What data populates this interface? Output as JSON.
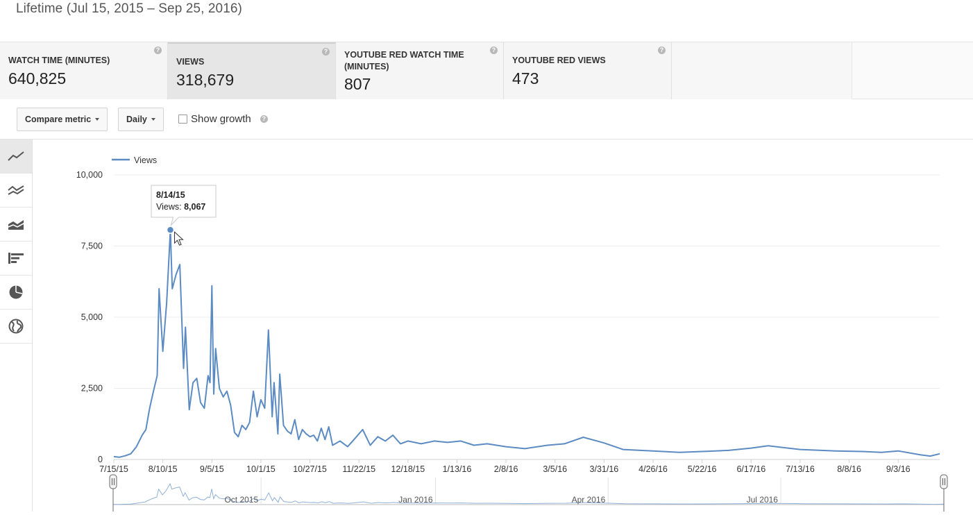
{
  "header": {
    "date_range": "Lifetime (Jul 15, 2015 – Sep 25, 2016)"
  },
  "metrics": [
    {
      "label": "WATCH TIME (MINUTES)",
      "value": "640,825",
      "selected": false
    },
    {
      "label": "VIEWS",
      "value": "318,679",
      "selected": true
    },
    {
      "label": "YOUTUBE RED WATCH TIME (MINUTES)",
      "value": "807",
      "selected": false
    },
    {
      "label": "YOUTUBE RED VIEWS",
      "value": "473",
      "selected": false
    }
  ],
  "help_glyph": "?",
  "toolbar": {
    "compare_label": "Compare metric",
    "interval_label": "Daily",
    "growth_label": "Show growth"
  },
  "sidebar_icons": [
    "line-chart-icon",
    "multi-line-chart-icon",
    "stacked-area-chart-icon",
    "bar-chart-icon",
    "pie-chart-icon",
    "globe-map-icon"
  ],
  "colors": {
    "series": "#5b8bc2",
    "grid": "#ececec",
    "selected_tab": "#e6e6e6"
  },
  "chart_data": {
    "type": "line",
    "title": "",
    "xlabel": "",
    "ylabel": "",
    "ylim": [
      0,
      10000
    ],
    "yticks": [
      0,
      2500,
      5000,
      7500,
      10000
    ],
    "ytick_labels": [
      "0",
      "2,500",
      "5,000",
      "7,500",
      "10,000"
    ],
    "xlim": [
      "2015-07-15",
      "2016-09-25"
    ],
    "xtick_labels": [
      "7/15/15",
      "8/10/15",
      "9/5/15",
      "10/1/15",
      "10/27/15",
      "11/22/15",
      "12/18/15",
      "1/13/16",
      "2/8/16",
      "3/5/16",
      "3/31/16",
      "4/26/16",
      "5/22/16",
      "6/17/16",
      "7/13/16",
      "8/8/16",
      "9/3/16"
    ],
    "xticks": [
      "2015-07-15",
      "2015-08-10",
      "2015-09-05",
      "2015-10-01",
      "2015-10-27",
      "2015-11-22",
      "2015-12-18",
      "2016-01-13",
      "2016-02-08",
      "2016-03-05",
      "2016-03-31",
      "2016-04-26",
      "2016-05-22",
      "2016-06-17",
      "2016-07-13",
      "2016-08-08",
      "2016-09-03"
    ],
    "grid": true,
    "legend": "top-left",
    "series": [
      {
        "name": "Views",
        "points": [
          [
            "2015-07-15",
            100
          ],
          [
            "2015-07-18",
            80
          ],
          [
            "2015-07-21",
            130
          ],
          [
            "2015-07-24",
            200
          ],
          [
            "2015-07-27",
            450
          ],
          [
            "2015-07-30",
            850
          ],
          [
            "2015-08-01",
            1050
          ],
          [
            "2015-08-03",
            1800
          ],
          [
            "2015-08-05",
            2400
          ],
          [
            "2015-08-07",
            2950
          ],
          [
            "2015-08-08",
            6000
          ],
          [
            "2015-08-10",
            3800
          ],
          [
            "2015-08-12",
            5500
          ],
          [
            "2015-08-14",
            8067
          ],
          [
            "2015-08-15",
            6000
          ],
          [
            "2015-08-17",
            6500
          ],
          [
            "2015-08-19",
            6850
          ],
          [
            "2015-08-21",
            3200
          ],
          [
            "2015-08-22",
            4650
          ],
          [
            "2015-08-24",
            1750
          ],
          [
            "2015-08-26",
            2700
          ],
          [
            "2015-08-28",
            2850
          ],
          [
            "2015-08-30",
            2000
          ],
          [
            "2015-09-01",
            1800
          ],
          [
            "2015-09-03",
            2950
          ],
          [
            "2015-09-04",
            2700
          ],
          [
            "2015-09-05",
            6100
          ],
          [
            "2015-09-06",
            2300
          ],
          [
            "2015-09-07",
            3900
          ],
          [
            "2015-09-09",
            2500
          ],
          [
            "2015-09-11",
            2200
          ],
          [
            "2015-09-13",
            2400
          ],
          [
            "2015-09-15",
            1900
          ],
          [
            "2015-09-17",
            950
          ],
          [
            "2015-09-19",
            800
          ],
          [
            "2015-09-21",
            1200
          ],
          [
            "2015-09-23",
            1050
          ],
          [
            "2015-09-25",
            1300
          ],
          [
            "2015-09-27",
            2400
          ],
          [
            "2015-09-29",
            1500
          ],
          [
            "2015-10-01",
            2100
          ],
          [
            "2015-10-03",
            1800
          ],
          [
            "2015-10-05",
            4550
          ],
          [
            "2015-10-07",
            1500
          ],
          [
            "2015-10-08",
            2700
          ],
          [
            "2015-10-10",
            900
          ],
          [
            "2015-10-11",
            3000
          ],
          [
            "2015-10-13",
            1200
          ],
          [
            "2015-10-15",
            1000
          ],
          [
            "2015-10-17",
            900
          ],
          [
            "2015-10-19",
            1400
          ],
          [
            "2015-10-21",
            700
          ],
          [
            "2015-10-23",
            1050
          ],
          [
            "2015-10-25",
            900
          ],
          [
            "2015-10-27",
            800
          ],
          [
            "2015-10-29",
            850
          ],
          [
            "2015-10-31",
            650
          ],
          [
            "2015-11-02",
            1100
          ],
          [
            "2015-11-04",
            700
          ],
          [
            "2015-11-06",
            1150
          ],
          [
            "2015-11-08",
            500
          ],
          [
            "2015-11-12",
            650
          ],
          [
            "2015-11-16",
            450
          ],
          [
            "2015-11-20",
            750
          ],
          [
            "2015-11-24",
            1050
          ],
          [
            "2015-11-28",
            500
          ],
          [
            "2015-12-02",
            800
          ],
          [
            "2015-12-06",
            650
          ],
          [
            "2015-12-10",
            850
          ],
          [
            "2015-12-14",
            550
          ],
          [
            "2015-12-18",
            650
          ],
          [
            "2015-12-25",
            550
          ],
          [
            "2016-01-01",
            650
          ],
          [
            "2016-01-08",
            600
          ],
          [
            "2016-01-15",
            650
          ],
          [
            "2016-01-22",
            500
          ],
          [
            "2016-01-29",
            550
          ],
          [
            "2016-02-08",
            450
          ],
          [
            "2016-02-18",
            380
          ],
          [
            "2016-03-01",
            500
          ],
          [
            "2016-03-10",
            550
          ],
          [
            "2016-03-20",
            780
          ],
          [
            "2016-03-31",
            580
          ],
          [
            "2016-04-10",
            350
          ],
          [
            "2016-04-26",
            300
          ],
          [
            "2016-05-10",
            250
          ],
          [
            "2016-05-22",
            280
          ],
          [
            "2016-06-05",
            320
          ],
          [
            "2016-06-17",
            400
          ],
          [
            "2016-06-26",
            480
          ],
          [
            "2016-07-13",
            350
          ],
          [
            "2016-08-01",
            300
          ],
          [
            "2016-08-15",
            280
          ],
          [
            "2016-08-25",
            250
          ],
          [
            "2016-09-03",
            300
          ],
          [
            "2016-09-15",
            160
          ],
          [
            "2016-09-20",
            120
          ],
          [
            "2016-09-25",
            200
          ]
        ]
      }
    ],
    "tooltip": {
      "date": "8/14/15",
      "label": "Views:",
      "value": "8,067",
      "value_num": 8067,
      "x": "2015-08-14"
    },
    "navigator": {
      "labels": [
        "Oct 2015",
        "Jan 2016",
        "Apr 2016",
        "Jul 2016"
      ],
      "label_dates": [
        "2015-10-01",
        "2016-01-01",
        "2016-04-01",
        "2016-07-01"
      ]
    }
  }
}
